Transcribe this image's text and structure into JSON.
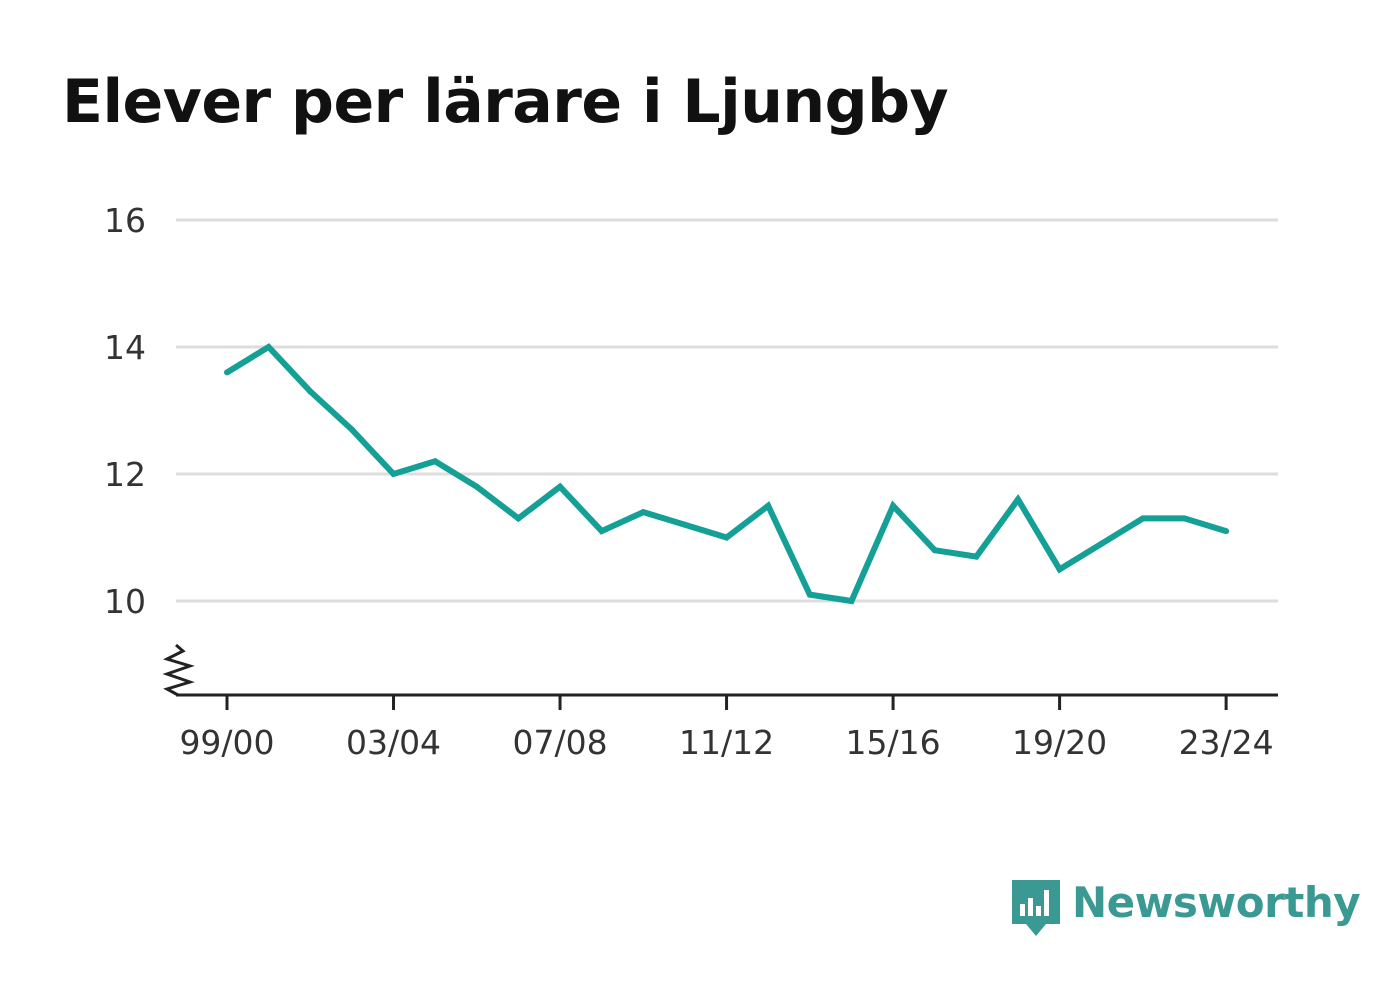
{
  "title": "Elever per lärare i Ljungby",
  "brand": {
    "name": "Newsworthy",
    "color": "#3a9a93"
  },
  "chart_data": {
    "type": "line",
    "title": "Elever per lärare i Ljungby",
    "xlabel": "",
    "ylabel": "",
    "ylim": [
      8.5,
      16
    ],
    "y_ticks": [
      "16",
      "14",
      "12",
      "10"
    ],
    "y_tick_values": [
      16,
      14,
      12,
      10
    ],
    "x_tick_labels": [
      "99/00",
      "03/04",
      "07/08",
      "11/12",
      "15/16",
      "19/20",
      "23/24"
    ],
    "x_tick_indices": [
      0,
      4,
      8,
      12,
      16,
      20,
      24
    ],
    "grid": true,
    "axis_break": true,
    "line_color": "#14a096",
    "x": [
      "99/00",
      "00/01",
      "01/02",
      "02/03",
      "03/04",
      "04/05",
      "05/06",
      "06/07",
      "07/08",
      "08/09",
      "09/10",
      "10/11",
      "11/12",
      "12/13",
      "13/14",
      "14/15",
      "15/16",
      "16/17",
      "17/18",
      "18/19",
      "19/20",
      "20/21",
      "21/22",
      "22/23",
      "23/24"
    ],
    "series": [
      {
        "values": [
          13.6,
          14.0,
          13.3,
          12.7,
          12.0,
          12.2,
          11.8,
          11.3,
          11.8,
          11.1,
          11.4,
          11.2,
          11.0,
          11.5,
          10.1,
          10.0,
          11.5,
          10.8,
          10.7,
          11.6,
          10.5,
          10.9,
          11.3,
          11.3,
          11.1
        ]
      }
    ]
  }
}
